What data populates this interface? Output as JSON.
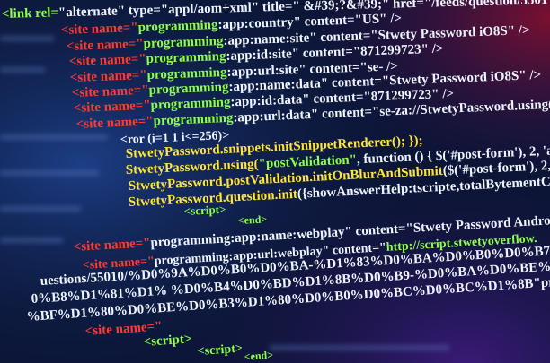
{
  "lines": [
    {
      "segments": [
        {
          "text": "<link rel=",
          "color": "#8dff4a"
        },
        {
          "text": "\"alternate\" type=\"appl/aom+xml\" title=\" &#39;?&#39;\" href=\"/feeds/question/5501",
          "color": "#eef4ff"
        }
      ]
    },
    {
      "segments": [
        {
          "text": "<site name=\"",
          "color": "#ff3b2f"
        },
        {
          "text": "programming",
          "color": "#8dff4a"
        },
        {
          "text": ":app:country\" content=\"US\" />",
          "color": "#eef4ff"
        }
      ]
    },
    {
      "segments": [
        {
          "text": "<site name=\"",
          "color": "#ff3b2f"
        },
        {
          "text": "programming",
          "color": "#8dff4a"
        },
        {
          "text": ":app:name:site\" content=\"Stwety Password iO8S\" />",
          "color": "#eef4ff"
        }
      ]
    },
    {
      "segments": [
        {
          "text": "<site name=\"",
          "color": "#ff3b2f"
        },
        {
          "text": "programming",
          "color": "#8dff4a"
        },
        {
          "text": ":app:id:site\" content=\"871299723\" />",
          "color": "#eef4ff"
        }
      ]
    },
    {
      "segments": [
        {
          "text": "<site name=\"",
          "color": "#ff3b2f"
        },
        {
          "text": "programming",
          "color": "#8dff4a"
        },
        {
          "text": ":app:url:site\" content=\"se- />",
          "color": "#eef4ff"
        }
      ]
    },
    {
      "segments": [
        {
          "text": "<site name=\"",
          "color": "#ff3b2f"
        },
        {
          "text": "programming",
          "color": "#8dff4a"
        },
        {
          "text": ":app:name:data\" content=\"Stwety Password iO8S\" />",
          "color": "#eef4ff"
        }
      ]
    },
    {
      "segments": [
        {
          "text": "<site name=\"",
          "color": "#ff3b2f"
        },
        {
          "text": "programming",
          "color": "#8dff4a"
        },
        {
          "text": ":app:id:data\" content=\"871299723\" />",
          "color": "#eef4ff"
        }
      ]
    },
    {
      "segments": [
        {
          "text": "<site name=\"",
          "color": "#ff3b2f"
        },
        {
          "text": "programming",
          "color": "#8dff4a"
        },
        {
          "text": ":app:url:data\" content=\"se-za://StwetyPassword.using(\"sni",
          "color": "#eef4ff"
        }
      ]
    },
    {
      "segments": [
        {
          "text": "<ror (i=1 1 i<=256)>",
          "color": "#eef4ff"
        }
      ]
    },
    {
      "segments": [
        {
          "text": "StwetyPassword.snippets.initSnippetRenderer(); });",
          "color": "#ffe53a"
        }
      ]
    },
    {
      "segments": [
        {
          "text": "StwetyPassword.using(",
          "color": "#ffe53a"
        },
        {
          "text": "\"postValidation\"",
          "color": "#8dff4a"
        },
        {
          "text": ", function () { $('#post-form'), 2, 'ans",
          "color": "#eef4ff"
        }
      ]
    },
    {
      "segments": [
        {
          "text": "StwetyPassword.postValidation.initOnBlurAndSubmit",
          "color": "#ffe53a"
        },
        {
          "text": "($('#post-form'), 2, 'ans",
          "color": "#eef4ff"
        }
      ]
    },
    {
      "segments": [
        {
          "text": "StwetyPassword.question.init",
          "color": "#ffe53a"
        },
        {
          "text": "({showAnswerHelp:tscripte,totalBytementCount",
          "color": "#eef4ff"
        }
      ]
    },
    {
      "segments": [
        {
          "text": "<script>",
          "color": "#8dff4a"
        }
      ]
    },
    {
      "segments": [
        {
          "text": "<end>",
          "color": "#8dff4a"
        }
      ]
    },
    {
      "segments": [
        {
          "text": "<site name=\"",
          "color": "#ff3b2f"
        },
        {
          "text": "programming:app:name:webplay\" content=\"Stwety Password Android\">",
          "color": "#eef4ff"
        }
      ]
    },
    {
      "segments": [
        {
          "text": "<site name=\"",
          "color": "#ff3b2f"
        },
        {
          "text": "programming:app:url:webplay\" content=\"",
          "color": "#eef4ff"
        },
        {
          "text": "http://script.stwetyoverflow.",
          "color": "#8dff4a"
        }
      ]
    },
    {
      "segments": [
        {
          "text": "uestions/55010/%D0%9A%D0%B0%D0%BA-%D1%83%D0%BA%D0%B0%D0%B7%D0%B0%D1%82%D1%8C-",
          "color": "#eef4ff"
        }
      ]
    },
    {
      "segments": [
        {
          "text": "0%B8%D1%81%D1% %D0%B4%D0%BD%D1%8B%D0%B9-%D0%BA%D0%BE%D0%B4-%D0%B8",
          "color": "#eef4ff"
        }
      ]
    },
    {
      "segments": [
        {
          "text": "%BF%D1%80%D0%BE%D0%B3%D1%80%D0%B0%D0%BC%D0%BC%D1%8B\"",
          "color": "#eef4ff"
        },
        {
          "text": "programming:app:id:webplay\" content=\"",
          "color": "#eef4ff"
        },
        {
          "text": "byte.stwetyPassword.marvin",
          "color": "#8dff4a"
        }
      ]
    },
    {
      "segments": [
        {
          "text": "<site name=\"",
          "color": "#ff3b2f"
        }
      ]
    },
    {
      "segments": [
        {
          "text": "<script>",
          "color": "#8dff4a"
        }
      ]
    },
    {
      "segments": [
        {
          "text": "<script>",
          "color": "#8dff4a"
        }
      ]
    },
    {
      "segments": [
        {
          "text": "<end>",
          "color": "#8dff4a"
        }
      ]
    }
  ]
}
